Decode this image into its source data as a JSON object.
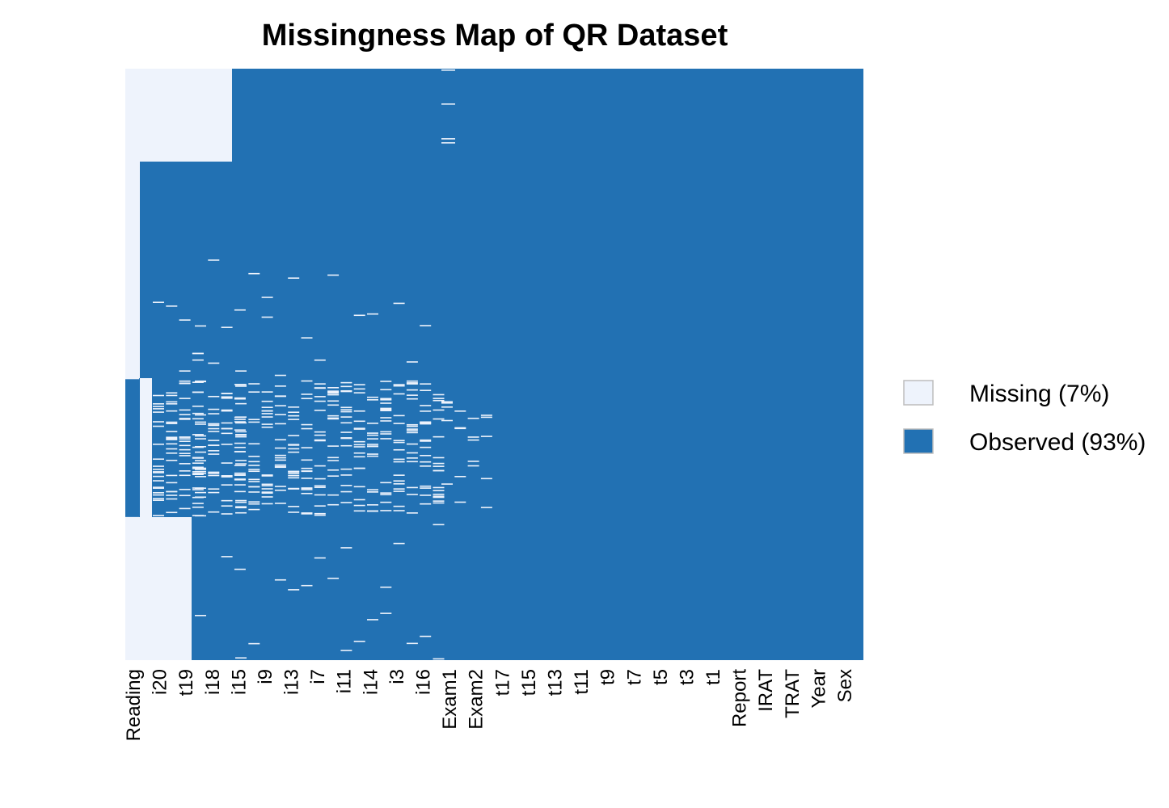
{
  "chart_data": {
    "type": "heatmap",
    "title": "Missingness Map of QR Dataset",
    "xlabel": "",
    "ylabel": "",
    "grid": false,
    "legend_position": "right",
    "tick_labels": [
      "Reading",
      "i20",
      "t19",
      "i18",
      "i15",
      "i9",
      "i13",
      "i7",
      "i11",
      "i14",
      "i3",
      "i16",
      "Exam1",
      "Exam2",
      "t17",
      "t15",
      "t13",
      "t11",
      "t9",
      "t7",
      "t5",
      "t3",
      "t1",
      "Report",
      "IRAT",
      "TRAT",
      "Year",
      "Sex"
    ],
    "legend": [
      {
        "label": "Missing (7%)",
        "color": "#eef3fc"
      },
      {
        "label": "Observed (93%)",
        "color": "#2271b3"
      }
    ],
    "colors": {
      "missing": "#eef3fc",
      "observed": "#2271b3"
    },
    "n_columns": 56,
    "n_rows": 1000,
    "missing_blocks": [
      {
        "cols": [
          0,
          0
        ],
        "rows": [
          0,
          525
        ]
      },
      {
        "cols": [
          0,
          0
        ],
        "rows": [
          758,
          999
        ]
      },
      {
        "cols": [
          1,
          7
        ],
        "rows": [
          0,
          157
        ]
      },
      {
        "cols": [
          1,
          1
        ],
        "rows": [
          157,
          758
        ]
      },
      {
        "cols": [
          2,
          4
        ],
        "rows": [
          758,
          999
        ]
      },
      {
        "cols": [
          1,
          4
        ],
        "rows": [
          758,
          999
        ]
      }
    ]
  }
}
